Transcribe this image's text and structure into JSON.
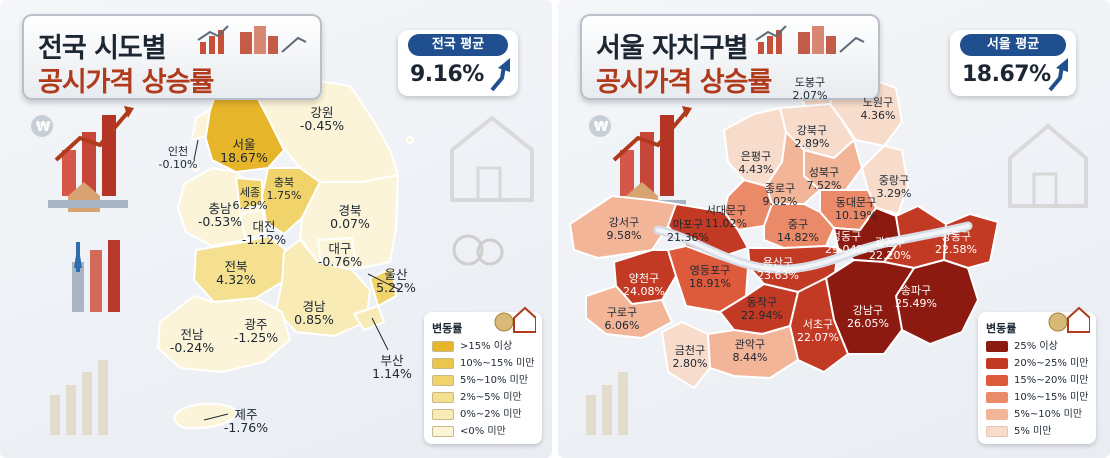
{
  "left": {
    "title_line1": "전국 시도별",
    "title_line2": "공시가격 상승률",
    "avg_label": "전국 평균",
    "avg_value": "9.16%",
    "legend_title": "변동률",
    "legend": [
      {
        "label": ">15% 이상",
        "color": "#e7b52a"
      },
      {
        "label": "10%~15% 미만",
        "color": "#ecc64a"
      },
      {
        "label": "5%~10% 미만",
        "color": "#f0d36a"
      },
      {
        "label": "2%~5% 미만",
        "color": "#f4e08e"
      },
      {
        "label": "0%~2% 미만",
        "color": "#f8ebb6"
      },
      {
        "label": "<0% 미만",
        "color": "#fcf4d8"
      }
    ],
    "regions": [
      {
        "name": "인천",
        "value": "-0.10%"
      },
      {
        "name": "서울",
        "value": "18.67%"
      },
      {
        "name": "강원",
        "value": "-0.45%"
      },
      {
        "name": "세종",
        "value": "6.29%"
      },
      {
        "name": "충북",
        "value": "1.75%"
      },
      {
        "name": "충남",
        "value": "-0.53%"
      },
      {
        "name": "대전",
        "value": "-1.12%"
      },
      {
        "name": "경북",
        "value": "0.07%"
      },
      {
        "name": "대구",
        "value": "-0.76%"
      },
      {
        "name": "전북",
        "value": "4.32%"
      },
      {
        "name": "울산",
        "value": "5.22%"
      },
      {
        "name": "경남",
        "value": "0.85%"
      },
      {
        "name": "광주",
        "value": "-1.25%"
      },
      {
        "name": "전남",
        "value": "-0.24%"
      },
      {
        "name": "부산",
        "value": "1.14%"
      },
      {
        "name": "제주",
        "value": "-1.76%"
      }
    ]
  },
  "right": {
    "title_line1": "서울 자치구별",
    "title_line2": "공시가격 상승률",
    "avg_label": "서울 평균",
    "avg_value": "18.67%",
    "legend_title": "변동률",
    "legend": [
      {
        "label": "25% 이상",
        "color": "#8c1a10"
      },
      {
        "label": "20%~25% 미만",
        "color": "#c23a24"
      },
      {
        "label": "15%~20% 미만",
        "color": "#de5a3c"
      },
      {
        "label": "10%~15% 미만",
        "color": "#eb8a68"
      },
      {
        "label": "5%~10% 미만",
        "color": "#f2b598"
      },
      {
        "label": "5% 미만",
        "color": "#f8dccb"
      }
    ],
    "districts": [
      {
        "name": "도봉구",
        "value": "2.07%"
      },
      {
        "name": "노원구",
        "value": "4.36%"
      },
      {
        "name": "강북구",
        "value": "2.89%"
      },
      {
        "name": "은평구",
        "value": "4.43%"
      },
      {
        "name": "성북구",
        "value": "7.52%"
      },
      {
        "name": "종로구",
        "value": "9.02%"
      },
      {
        "name": "중랑구",
        "value": "3.29%"
      },
      {
        "name": "동대문구",
        "value": "10.19%"
      },
      {
        "name": "서대문구",
        "value": "11.02%"
      },
      {
        "name": "마포구",
        "value": "21.36%"
      },
      {
        "name": "중구",
        "value": "14.82%"
      },
      {
        "name": "강서구",
        "value": "9.58%"
      },
      {
        "name": "성동구",
        "value": "29.04%"
      },
      {
        "name": "광진구",
        "value": "22.20%"
      },
      {
        "name": "강동구",
        "value": "22.58%"
      },
      {
        "name": "용산구",
        "value": "23.63%"
      },
      {
        "name": "양천구",
        "value": "24.08%"
      },
      {
        "name": "영등포구",
        "value": "18.91%"
      },
      {
        "name": "송파구",
        "value": "25.49%"
      },
      {
        "name": "강남구",
        "value": "26.05%"
      },
      {
        "name": "구로구",
        "value": "6.06%"
      },
      {
        "name": "동작구",
        "value": "22.94%"
      },
      {
        "name": "서초구",
        "value": "22.07%"
      },
      {
        "name": "금천구",
        "value": "2.80%"
      },
      {
        "name": "관악구",
        "value": "8.44%"
      }
    ]
  }
}
